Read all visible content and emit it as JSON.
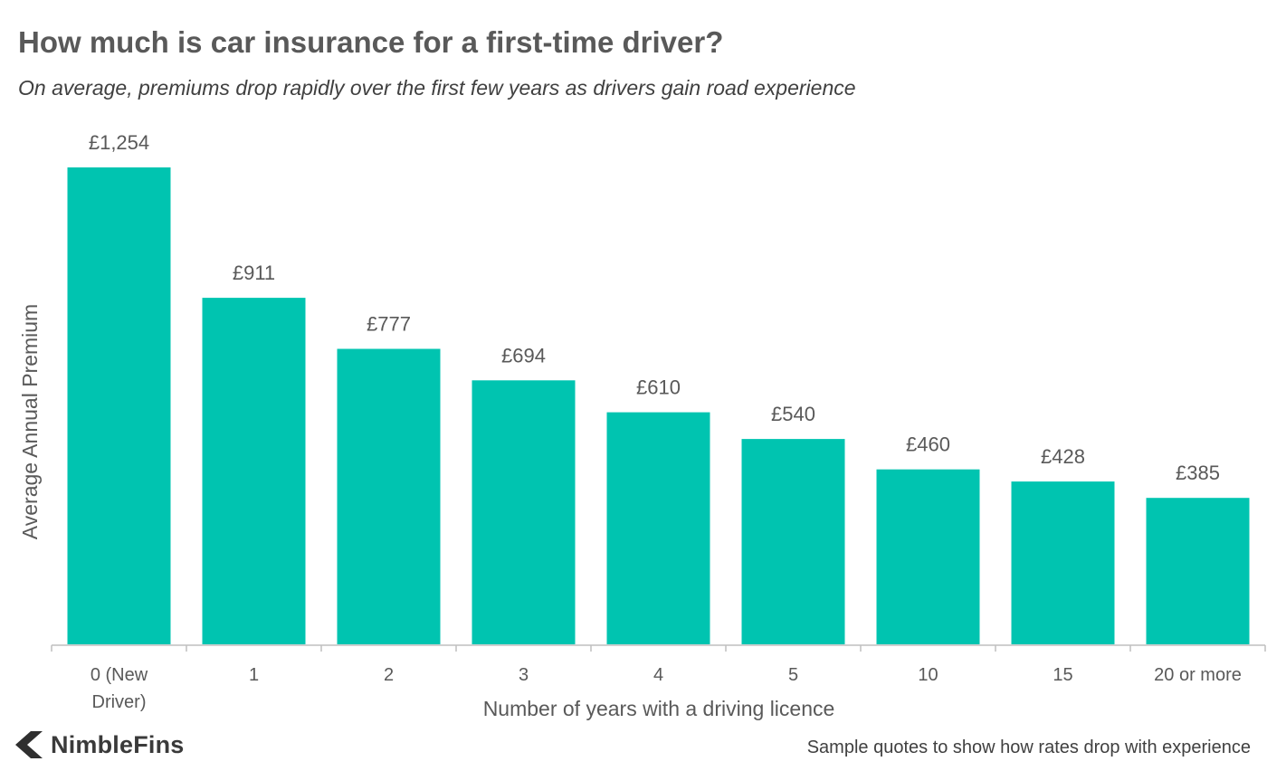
{
  "header": {
    "title": "How much is car insurance for a first-time driver?",
    "subtitle": "On average, premiums drop rapidly over the first few years as drivers gain road experience"
  },
  "footer": {
    "brand": "NimbleFins",
    "brand_icon": "chevron-left-logo-icon",
    "note": "Sample quotes to show how rates drop with experience"
  },
  "colors": {
    "bar": "#00C4B0",
    "axis": "#bfbfbf",
    "text": "#595959"
  },
  "chart_data": {
    "type": "bar",
    "title": "How much is car insurance for a first-time driver?",
    "subtitle": "On average, premiums drop rapidly over the first few years as drivers gain road experience",
    "xlabel": "Number of years with a driving licence",
    "ylabel": "Average Annual Premium",
    "categories": [
      [
        "0 (New",
        "Driver)"
      ],
      [
        "1"
      ],
      [
        "2"
      ],
      [
        "3"
      ],
      [
        "4"
      ],
      [
        "5"
      ],
      [
        "10"
      ],
      [
        "15"
      ],
      [
        "20 or more"
      ]
    ],
    "values": [
      1254,
      911,
      777,
      694,
      610,
      540,
      460,
      428,
      385
    ],
    "data_labels": [
      "£1,254",
      "£911",
      "£777",
      "£694",
      "£610",
      "£540",
      "£460",
      "£428",
      "£385"
    ],
    "ylim": [
      0,
      1254
    ],
    "grid": false,
    "legend": "none"
  }
}
